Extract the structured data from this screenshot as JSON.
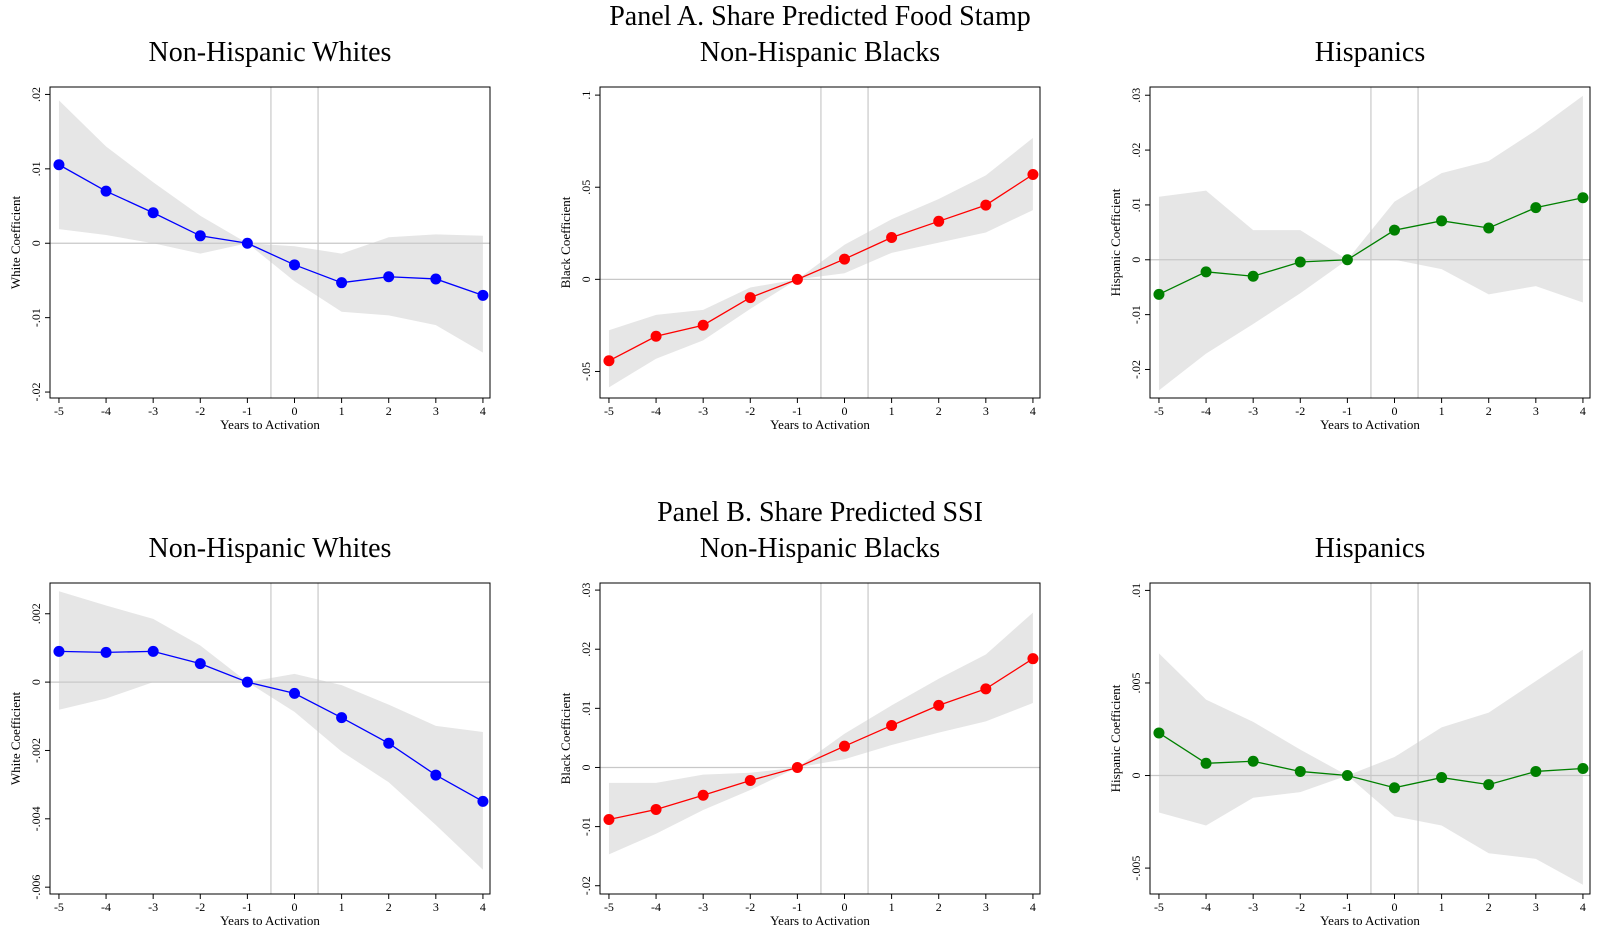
{
  "chart_data": [
    {
      "type": "line",
      "title": "Non-Hispanic Whites",
      "xlabel": "Years to Activation",
      "ylabel": "White Coefficient",
      "color": "#0000ff",
      "band_color": "#e6e6e6",
      "x": [
        -5,
        -4,
        -3,
        -2,
        -1,
        0,
        1,
        2,
        3,
        4
      ],
      "values": [
        0.01055,
        0.007,
        0.0041,
        0.001,
        0,
        -0.0029,
        -0.0053,
        -0.0045,
        -0.0048,
        -0.007
      ],
      "upper": [
        0.0192,
        0.013,
        0.0082,
        0.0037,
        0,
        -0.0004,
        -0.0014,
        0.0008,
        0.0012,
        0.001
      ],
      "lower": [
        0.0019,
        0.0011,
        0,
        -0.0014,
        0,
        -0.0051,
        -0.0092,
        -0.0097,
        -0.011,
        -0.0147
      ],
      "xlim": [
        -5.19,
        4.15
      ],
      "ylim": [
        -0.0208,
        0.021
      ],
      "xticks": [
        -5,
        -4,
        -3,
        -2,
        -1,
        0,
        1,
        2,
        3,
        4
      ],
      "yticks": [
        {
          "value": -0.02,
          "label": "-.02"
        },
        {
          "value": -0.01,
          "label": "-.01"
        },
        0,
        {
          "value": 0.01,
          "label": ".01"
        },
        {
          "value": 0.02,
          "label": ".02"
        }
      ],
      "vlines": [
        -0.5,
        0.5
      ],
      "hline": 0
    },
    {
      "type": "line",
      "suptitle": "Panel A. Share Predicted Food Stamp",
      "title": "Non-Hispanic Blacks",
      "xlabel": "Years to Activation",
      "ylabel": "Black Coefficient",
      "color": "#ff0000",
      "band_color": "#e6e6e6",
      "x": [
        -5,
        -4,
        -3,
        -2,
        -1,
        0,
        1,
        2,
        3,
        4
      ],
      "values": [
        -0.0442,
        -0.0309,
        -0.0249,
        -0.0099,
        0,
        0.011,
        0.0227,
        0.0315,
        0.0403,
        0.0569
      ],
      "upper": [
        -0.0276,
        -0.0193,
        -0.0166,
        -0.0044,
        0,
        0.0188,
        0.0326,
        0.0436,
        0.0564,
        0.0768
      ],
      "lower": [
        -0.0586,
        -0.0431,
        -0.0331,
        -0.016,
        0,
        0.0033,
        0.0144,
        0.0199,
        0.0254,
        0.0376
      ],
      "xlim": [
        -5.19,
        4.15
      ],
      "ylim": [
        -0.0644,
        0.1044
      ],
      "xticks": [
        -5,
        -4,
        -3,
        -2,
        -1,
        0,
        1,
        2,
        3,
        4
      ],
      "yticks": [
        {
          "value": -0.05,
          "label": "-.05"
        },
        0,
        {
          "value": 0.05,
          "label": ".05"
        },
        {
          "value": 0.1,
          "label": ".1"
        }
      ],
      "vlines": [
        -0.5,
        0.5
      ],
      "hline": 0
    },
    {
      "type": "line",
      "title": "Hispanics",
      "xlabel": "Years to Activation",
      "ylabel": "Hispanic Coefficient",
      "color": "#008000",
      "band_color": "#e6e6e6",
      "x": [
        -5,
        -4,
        -3,
        -2,
        -1,
        0,
        1,
        2,
        3,
        4
      ],
      "values": [
        -0.0063,
        -0.0022,
        -0.003,
        -0.0004,
        0,
        0.0054,
        0.0071,
        0.0058,
        0.0095,
        0.0113
      ],
      "upper": [
        0.0115,
        0.0126,
        0.0054,
        0.0054,
        0,
        0.0106,
        0.0158,
        0.018,
        0.0236,
        0.0299
      ],
      "lower": [
        -0.0238,
        -0.0171,
        -0.0117,
        -0.0061,
        0,
        0,
        -0.0017,
        -0.0063,
        -0.0048,
        -0.0078
      ],
      "xlim": [
        -5.19,
        4.15
      ],
      "ylim": [
        -0.0252,
        0.0315
      ],
      "xticks": [
        -5,
        -4,
        -3,
        -2,
        -1,
        0,
        1,
        2,
        3,
        4
      ],
      "yticks": [
        {
          "value": -0.02,
          "label": "-.02"
        },
        {
          "value": -0.01,
          "label": "-.01"
        },
        0,
        {
          "value": 0.01,
          "label": ".01"
        },
        {
          "value": 0.02,
          "label": ".02"
        },
        {
          "value": 0.03,
          "label": ".03"
        }
      ],
      "vlines": [
        -0.5,
        0.5
      ],
      "hline": 0
    },
    {
      "type": "line",
      "title": "Non-Hispanic Whites",
      "xlabel": "Years to Activation",
      "ylabel": "White Coefficient",
      "color": "#0000ff",
      "band_color": "#e6e6e6",
      "x": [
        -5,
        -4,
        -3,
        -2,
        -1,
        0,
        1,
        2,
        3,
        4
      ],
      "values": [
        0.0009,
        0.00087,
        0.0009,
        0.00054,
        0,
        -0.00033,
        -0.00104,
        -0.00179,
        -0.00272,
        -0.00349
      ],
      "upper": [
        0.00266,
        0.00224,
        0.00185,
        0.00107,
        0,
        0.00024,
        -9e-05,
        -0.00066,
        -0.00128,
        -0.00146
      ],
      "lower": [
        -0.00081,
        -0.00048,
        0,
        0,
        0,
        -0.00087,
        -0.00203,
        -0.00293,
        -0.00418,
        -0.00549
      ],
      "xlim": [
        -5.19,
        4.15
      ],
      "ylim": [
        -0.0062,
        0.0029
      ],
      "xticks": [
        -5,
        -4,
        -3,
        -2,
        -1,
        0,
        1,
        2,
        3,
        4
      ],
      "yticks": [
        {
          "value": -0.006,
          "label": "-.006"
        },
        {
          "value": -0.004,
          "label": "-.004"
        },
        {
          "value": -0.002,
          "label": "-.002"
        },
        0,
        {
          "value": 0.002,
          "label": ".002"
        }
      ],
      "vlines": [
        -0.5,
        0.5
      ],
      "hline": 0
    },
    {
      "type": "line",
      "suptitle": "Panel B. Share Predicted SSI",
      "title": "Non-Hispanic Blacks",
      "xlabel": "Years to Activation",
      "ylabel": "Black Coefficient",
      "color": "#ff0000",
      "band_color": "#e6e6e6",
      "x": [
        -5,
        -4,
        -3,
        -2,
        -1,
        0,
        1,
        2,
        3,
        4
      ],
      "values": [
        -0.0088,
        -0.0071,
        -0.0047,
        -0.0022,
        0,
        0.0036,
        0.0071,
        0.0105,
        0.0133,
        0.0184
      ],
      "upper": [
        -0.0026,
        -0.0026,
        -0.0012,
        -0.0009,
        0,
        0.0057,
        0.0105,
        0.015,
        0.0191,
        0.0262
      ],
      "lower": [
        -0.0147,
        -0.0112,
        -0.0072,
        -0.0038,
        0,
        0.0014,
        0.0038,
        0.0059,
        0.0078,
        0.0109
      ],
      "xlim": [
        -5.19,
        4.15
      ],
      "ylim": [
        -0.0214,
        0.0312
      ],
      "xticks": [
        -5,
        -4,
        -3,
        -2,
        -1,
        0,
        1,
        2,
        3,
        4
      ],
      "yticks": [
        {
          "value": -0.02,
          "label": "-.02"
        },
        {
          "value": -0.01,
          "label": "-.01"
        },
        0,
        {
          "value": 0.01,
          "label": ".01"
        },
        {
          "value": 0.02,
          "label": ".02"
        },
        {
          "value": 0.03,
          "label": ".03"
        }
      ],
      "vlines": [
        -0.5,
        0.5
      ],
      "hline": 0
    },
    {
      "type": "line",
      "title": "Hispanics",
      "xlabel": "Years to Activation",
      "ylabel": "Hispanic Coefficient",
      "color": "#008000",
      "band_color": "#e6e6e6",
      "x": [
        -5,
        -4,
        -3,
        -2,
        -1,
        0,
        1,
        2,
        3,
        4
      ],
      "values": [
        0.0023,
        0.00066,
        0.00077,
        0.00022,
        0,
        -0.00066,
        -0.00011,
        -0.00049,
        0.00022,
        0.00038
      ],
      "upper": [
        0.0066,
        0.0041,
        0.0029,
        0.0014,
        0,
        0.001,
        0.0026,
        0.0034,
        0.0051,
        0.0068
      ],
      "lower": [
        -0.002,
        -0.0027,
        -0.0012,
        -0.0009,
        0,
        -0.0022,
        -0.0027,
        -0.0042,
        -0.0045,
        -0.0059
      ],
      "xlim": [
        -5.19,
        4.15
      ],
      "ylim": [
        -0.0064,
        0.0104
      ],
      "xticks": [
        -5,
        -4,
        -3,
        -2,
        -1,
        0,
        1,
        2,
        3,
        4
      ],
      "yticks": [
        {
          "value": -0.005,
          "label": "-.005"
        },
        0,
        {
          "value": 0.005,
          "label": ".005"
        },
        {
          "value": 0.01,
          "label": ".01"
        }
      ],
      "vlines": [
        -0.5,
        0.5
      ],
      "hline": 0
    }
  ]
}
